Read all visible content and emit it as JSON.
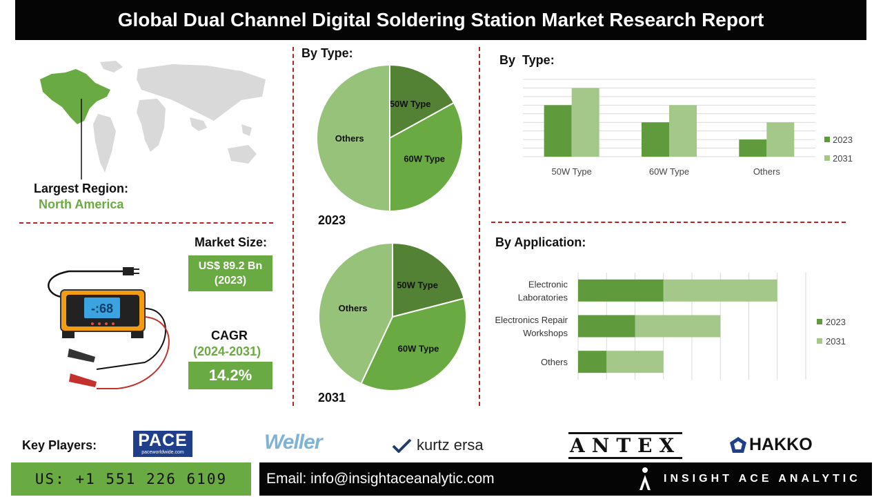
{
  "title": "Global Dual Channel Digital Soldering Station Market Research Report",
  "region": {
    "label": "Largest Region:",
    "value": "North America"
  },
  "market_size": {
    "label": "Market Size:",
    "value_line1": "US$ 89.2 Bn",
    "value_line2": "(2023)"
  },
  "cagr": {
    "label": "CAGR",
    "period": "(2024-2031)",
    "value": "14.2%"
  },
  "device_display": "-:68",
  "pie_section_title": "By Type:",
  "bar_type_title": "By  Type:",
  "app_title": "By Application:",
  "key_players": {
    "label": "Key Players:",
    "logos": [
      "PACE",
      "paceworldwide.com",
      "Weller",
      "kurtz ersa",
      "ANTEX",
      "HAKKO"
    ]
  },
  "footer": {
    "phone": "US: +1 551 226 6109",
    "email": "Email: info@insightaceanalytic.com",
    "brand": "INSIGHT ACE ANALYTIC"
  },
  "colors": {
    "series_2023": "#5f9b3c",
    "series_2031": "#a3c88a",
    "accent_green": "#6aaa42",
    "divider": "#b52020"
  },
  "chart_data": [
    {
      "type": "pie",
      "year_label": "2023",
      "labels": [
        "50W Type",
        "60W Type",
        "Others"
      ],
      "values": [
        17,
        33,
        50
      ],
      "colors": [
        "#548235",
        "#6aaa42",
        "#97c27a"
      ]
    },
    {
      "type": "pie",
      "year_label": "2031",
      "labels": [
        "50W Type",
        "60W Type",
        "Others"
      ],
      "values": [
        21,
        36,
        43
      ],
      "colors": [
        "#548235",
        "#6aaa42",
        "#97c27a"
      ]
    },
    {
      "type": "bar",
      "categories": [
        "50W Type",
        "60W Type",
        "Others"
      ],
      "series": [
        {
          "name": "2023",
          "values": [
            3,
            2,
            1
          ]
        },
        {
          "name": "2031",
          "values": [
            4,
            3,
            2
          ]
        }
      ],
      "ylim": [
        0,
        4.5
      ],
      "grid": true,
      "legend": "right"
    },
    {
      "type": "bar",
      "orientation": "horizontal",
      "stacked": true,
      "categories": [
        "Electronic\nLaboratories",
        "Electronics Repair\nWorkshops",
        "Others"
      ],
      "series": [
        {
          "name": "2023",
          "values": [
            3,
            2,
            1
          ]
        },
        {
          "name": "2031",
          "values": [
            4,
            3,
            2
          ]
        }
      ],
      "xlim": [
        0,
        8
      ],
      "grid": true,
      "legend": "right"
    }
  ]
}
